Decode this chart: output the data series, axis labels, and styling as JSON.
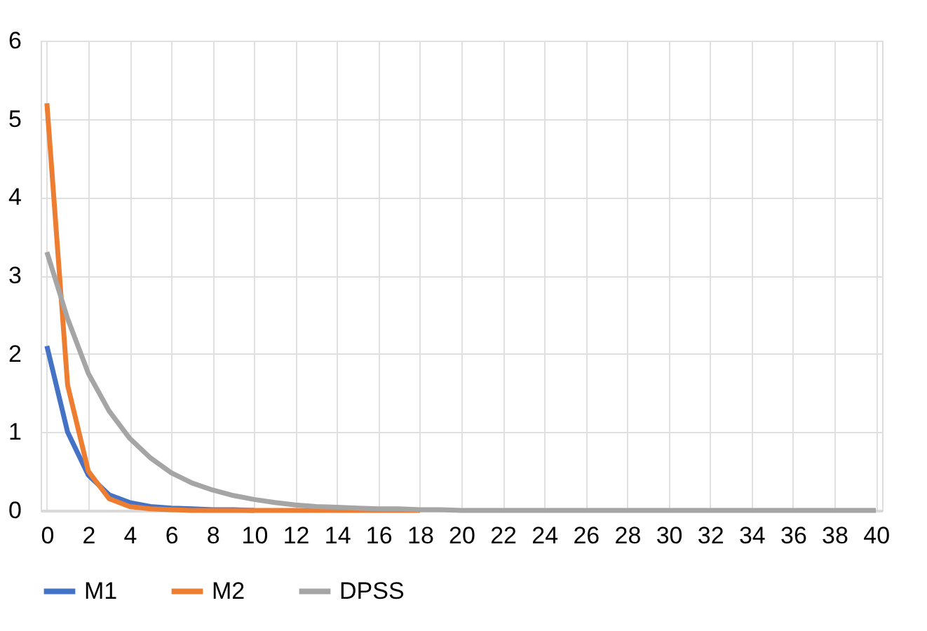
{
  "chart_data": {
    "type": "line",
    "x": [
      0,
      1,
      2,
      3,
      4,
      5,
      6,
      7,
      8,
      9,
      10,
      11,
      12,
      13,
      14,
      15,
      16,
      17,
      18,
      19,
      20,
      21,
      22,
      23,
      24,
      25,
      26,
      27,
      28,
      29,
      30,
      31,
      32,
      33,
      34,
      35,
      36,
      37,
      38,
      39,
      40
    ],
    "series": [
      {
        "name": "M1",
        "color": "#4472c4",
        "values": [
          2.1,
          1.0,
          0.45,
          0.2,
          0.1,
          0.05,
          0.03,
          0.02,
          0.01,
          0.01,
          0,
          null,
          null,
          null,
          null,
          null,
          null,
          null,
          null,
          null,
          null,
          null,
          null,
          null,
          null,
          null,
          null,
          null,
          null,
          null,
          null,
          null,
          null,
          null,
          null,
          null,
          null,
          null,
          null,
          null,
          null
        ]
      },
      {
        "name": "M2",
        "color": "#ed7d31",
        "values": [
          5.2,
          1.6,
          0.5,
          0.15,
          0.05,
          0.02,
          0.01,
          0,
          0,
          0,
          0,
          0,
          0,
          0,
          0,
          0,
          0,
          0,
          0,
          null,
          null,
          null,
          null,
          null,
          null,
          null,
          null,
          null,
          null,
          null,
          null,
          null,
          null,
          null,
          null,
          null,
          null,
          null,
          null,
          null,
          null
        ]
      },
      {
        "name": "DPSS",
        "color": "#a5a5a5",
        "values": [
          3.3,
          2.45,
          1.75,
          1.27,
          0.92,
          0.67,
          0.48,
          0.35,
          0.26,
          0.19,
          0.14,
          0.1,
          0.07,
          0.05,
          0.04,
          0.03,
          0.02,
          0.02,
          0.01,
          0.01,
          0,
          0,
          0,
          0,
          0,
          0,
          0,
          0,
          0,
          0,
          0,
          0,
          0,
          0,
          0,
          0,
          0,
          0,
          0,
          0,
          0
        ]
      }
    ],
    "xlim": [
      -0.3,
      40.3
    ],
    "xticks": [
      0,
      2,
      4,
      6,
      8,
      10,
      12,
      14,
      16,
      18,
      20,
      22,
      24,
      26,
      28,
      30,
      32,
      34,
      36,
      38,
      40
    ],
    "ylim": [
      0,
      6
    ],
    "yticks": [
      0,
      1,
      2,
      3,
      4,
      5,
      6
    ],
    "grid": true,
    "legend": "bottom",
    "marker": "none",
    "line_style": "solid"
  }
}
